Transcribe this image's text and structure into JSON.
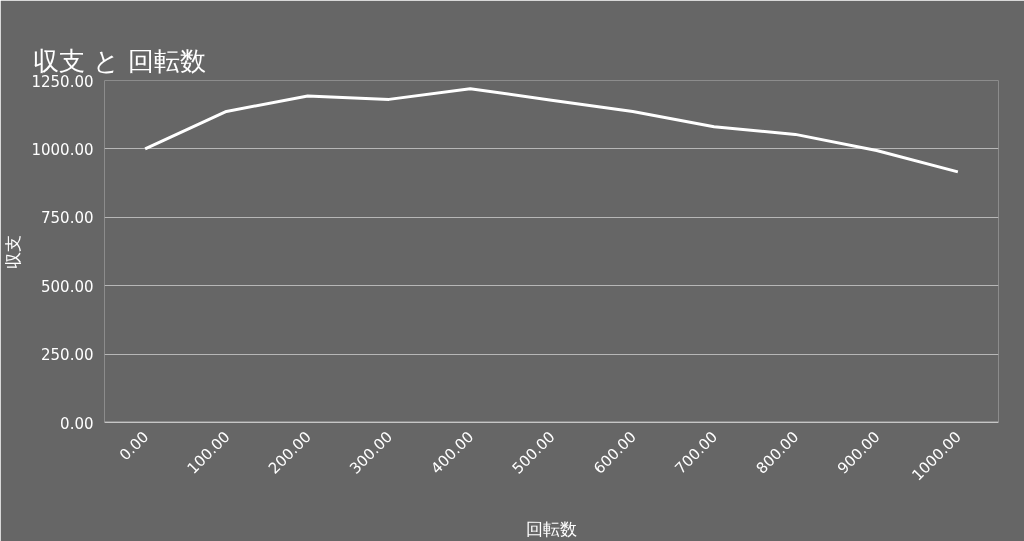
{
  "chart_data": {
    "type": "line",
    "title": "収支 と 回転数",
    "xlabel": "回転数",
    "ylabel": "収支",
    "x": [
      0,
      100,
      200,
      300,
      400,
      500,
      600,
      700,
      800,
      900,
      1000
    ],
    "series": [
      {
        "color": "#ffffff",
        "values": [
          1000,
          1137,
          1193,
          1181,
          1220,
          1178,
          1137,
          1081,
          1053,
          994,
          916
        ]
      }
    ],
    "xlim": [
      -50,
      1050
    ],
    "ylim": [
      0,
      1250
    ],
    "xticks": [
      {
        "value": 0,
        "label": "0.00"
      },
      {
        "value": 100,
        "label": "100.00"
      },
      {
        "value": 200,
        "label": "200.00"
      },
      {
        "value": 300,
        "label": "300.00"
      },
      {
        "value": 400,
        "label": "400.00"
      },
      {
        "value": 500,
        "label": "500.00"
      },
      {
        "value": 600,
        "label": "600.00"
      },
      {
        "value": 700,
        "label": "700.00"
      },
      {
        "value": 800,
        "label": "800.00"
      },
      {
        "value": 900,
        "label": "900.00"
      },
      {
        "value": 1000,
        "label": "1000.00"
      }
    ],
    "yticks": [
      {
        "value": 0,
        "label": "0.00"
      },
      {
        "value": 250,
        "label": "250.00"
      },
      {
        "value": 500,
        "label": "500.00"
      },
      {
        "value": 750,
        "label": "750.00"
      },
      {
        "value": 1000,
        "label": "1000.00"
      },
      {
        "value": 1250,
        "label": "1250.00"
      }
    ],
    "grid": "y",
    "marker": "none",
    "line_style": "solid"
  }
}
